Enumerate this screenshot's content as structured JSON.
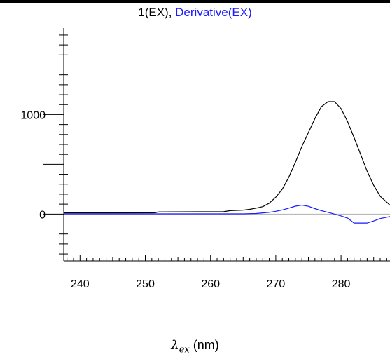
{
  "chart_data": {
    "type": "line",
    "title_parts": [
      "1(EX), ",
      "Derivative(EX)"
    ],
    "xlabel_symbol": "λ",
    "xlabel_sub": "ex",
    "xlabel_unit": " (nm)",
    "xlim": [
      237.5,
      287.5
    ],
    "ylim": [
      -470,
      1870
    ],
    "xticks": [
      240,
      250,
      260,
      270,
      280
    ],
    "yticks_labeled": [
      0,
      1000
    ],
    "grid": false,
    "zero_line": true,
    "series": [
      {
        "name": "1(EX)",
        "color": "#000000",
        "points": [
          [
            237.5,
            12
          ],
          [
            245,
            12
          ],
          [
            251.5,
            13
          ],
          [
            252,
            22
          ],
          [
            262,
            24
          ],
          [
            263,
            35
          ],
          [
            265,
            40
          ],
          [
            266,
            48
          ],
          [
            267,
            60
          ],
          [
            268,
            75
          ],
          [
            269,
            110
          ],
          [
            270,
            170
          ],
          [
            271,
            250
          ],
          [
            272,
            370
          ],
          [
            273,
            520
          ],
          [
            274,
            680
          ],
          [
            275,
            820
          ],
          [
            276,
            960
          ],
          [
            277,
            1080
          ],
          [
            278,
            1130
          ],
          [
            279,
            1130
          ],
          [
            280,
            1060
          ],
          [
            281,
            930
          ],
          [
            282,
            770
          ],
          [
            283,
            600
          ],
          [
            284,
            430
          ],
          [
            285,
            290
          ],
          [
            286,
            180
          ],
          [
            287.5,
            90
          ]
        ]
      },
      {
        "name": "Derivative(EX)",
        "color": "#1a1aff",
        "points": [
          [
            237.5,
            2
          ],
          [
            265,
            2
          ],
          [
            267,
            6
          ],
          [
            268,
            12
          ],
          [
            269,
            18
          ],
          [
            270,
            28
          ],
          [
            271,
            42
          ],
          [
            272,
            60
          ],
          [
            273,
            80
          ],
          [
            274,
            90
          ],
          [
            275,
            78
          ],
          [
            276,
            55
          ],
          [
            277,
            35
          ],
          [
            278,
            18
          ],
          [
            279,
            0
          ],
          [
            280,
            -18
          ],
          [
            281,
            -40
          ],
          [
            282,
            -90
          ],
          [
            284,
            -90
          ],
          [
            285,
            -70
          ],
          [
            286,
            -45
          ],
          [
            287.5,
            -25
          ]
        ]
      }
    ]
  }
}
